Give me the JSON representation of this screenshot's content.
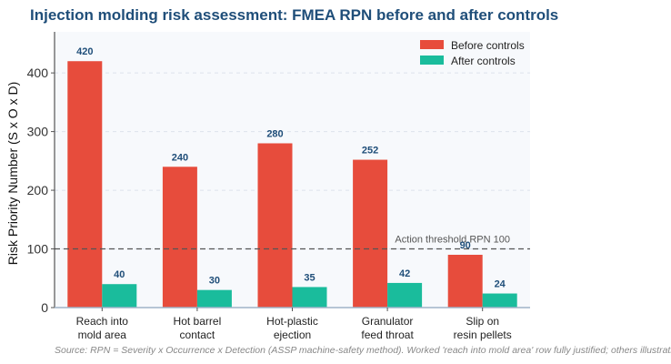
{
  "chart_data": {
    "type": "bar",
    "title": "Injection molding risk assessment: FMEA RPN before and after controls",
    "ylabel": "Risk Priority Number (S x O x D)",
    "xlabel": "",
    "ylim": [
      0,
      470
    ],
    "yticks": [
      0,
      100,
      200,
      300,
      400
    ],
    "categories": [
      [
        "Reach into",
        "mold area"
      ],
      [
        "Hot barrel",
        "contact"
      ],
      [
        "Hot-plastic",
        "ejection"
      ],
      [
        "Granulator",
        "feed throat"
      ],
      [
        "Slip on",
        "resin pellets"
      ]
    ],
    "series": [
      {
        "name": "Before controls",
        "color": "#e74c3c",
        "values": [
          420,
          240,
          280,
          252,
          90
        ]
      },
      {
        "name": "After controls",
        "color": "#1abc9c",
        "values": [
          40,
          30,
          35,
          42,
          24
        ]
      }
    ],
    "threshold": {
      "value": 100,
      "label": "Action threshold RPN 100"
    },
    "grid": true,
    "legend": "top-right",
    "source": "Source: RPN = Severity x Occurrence x Detection (ASSP machine-safety method). Worked 'reach into mold area' row fully justified; others illustrative."
  },
  "colors": {
    "title": "#1f4e79",
    "plot_background": "#f7f9fc",
    "data_label": "#1f4e79"
  }
}
